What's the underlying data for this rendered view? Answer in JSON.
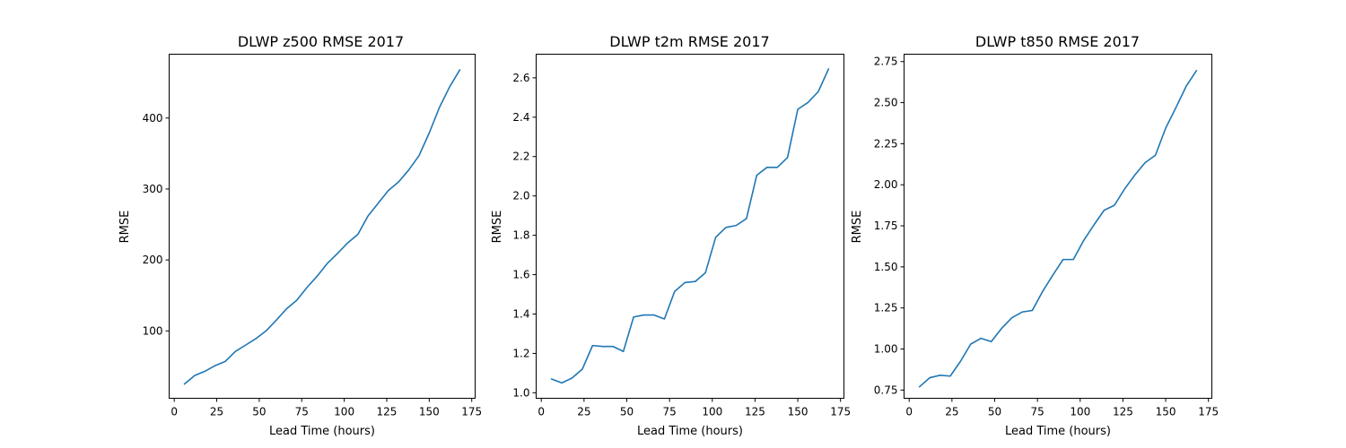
{
  "chart_data": [
    {
      "type": "line",
      "title": "DLWP z500 RMSE 2017",
      "xlabel": "Lead Time (hours)",
      "ylabel": "RMSE",
      "xlim": [
        -3,
        177
      ],
      "ylim": [
        5,
        490
      ],
      "xticks": [
        0,
        25,
        50,
        75,
        100,
        125,
        150,
        175
      ],
      "yticks": [
        100,
        200,
        300,
        400
      ],
      "ytick_labels": [
        "100",
        "200",
        "300",
        "400"
      ],
      "grid": false,
      "x": [
        6,
        12,
        18,
        24,
        30,
        36,
        42,
        48,
        54,
        60,
        66,
        72,
        78,
        84,
        90,
        96,
        102,
        108,
        114,
        120,
        126,
        132,
        138,
        144,
        150,
        156,
        162,
        168
      ],
      "series": [
        {
          "values": [
            25,
            37,
            43,
            51,
            57,
            71,
            80,
            89,
            100,
            115,
            131,
            143,
            161,
            177,
            195,
            209,
            224,
            236,
            262,
            280,
            298,
            310,
            327,
            347,
            379,
            415,
            444,
            468
          ]
        }
      ],
      "color": "#1f77b4"
    },
    {
      "type": "line",
      "title": "DLWP t2m RMSE 2017",
      "xlabel": "Lead Time (hours)",
      "ylabel": "RMSE",
      "xlim": [
        -3,
        177
      ],
      "ylim": [
        0.972,
        2.72
      ],
      "xticks": [
        0,
        25,
        50,
        75,
        100,
        125,
        150,
        175
      ],
      "yticks": [
        1.0,
        1.2,
        1.4,
        1.6,
        1.8,
        2.0,
        2.2,
        2.4,
        2.6
      ],
      "ytick_labels": [
        "1.0",
        "1.2",
        "1.4",
        "1.6",
        "1.8",
        "2.0",
        "2.2",
        "2.4",
        "2.6"
      ],
      "grid": false,
      "x": [
        6,
        12,
        18,
        24,
        30,
        36,
        42,
        48,
        54,
        60,
        66,
        72,
        78,
        84,
        90,
        96,
        102,
        108,
        114,
        120,
        126,
        132,
        138,
        144,
        150,
        156,
        162,
        168
      ],
      "series": [
        {
          "values": [
            1.07,
            1.05,
            1.075,
            1.12,
            1.24,
            1.235,
            1.235,
            1.21,
            1.385,
            1.395,
            1.395,
            1.375,
            1.515,
            1.56,
            1.565,
            1.61,
            1.79,
            1.84,
            1.85,
            1.885,
            2.105,
            2.145,
            2.145,
            2.195,
            2.44,
            2.475,
            2.53,
            2.645
          ]
        }
      ],
      "color": "#1f77b4"
    },
    {
      "type": "line",
      "title": "DLWP t850 RMSE 2017",
      "xlabel": "Lead Time (hours)",
      "ylabel": "RMSE",
      "xlim": [
        -3,
        177
      ],
      "ylim": [
        0.7,
        2.795
      ],
      "xticks": [
        0,
        25,
        50,
        75,
        100,
        125,
        150,
        175
      ],
      "yticks": [
        0.75,
        1.0,
        1.25,
        1.5,
        1.75,
        2.0,
        2.25,
        2.5,
        2.75
      ],
      "ytick_labels": [
        "0.75",
        "1.00",
        "1.25",
        "1.50",
        "1.75",
        "2.00",
        "2.25",
        "2.50",
        "2.75"
      ],
      "grid": false,
      "x": [
        6,
        12,
        18,
        24,
        30,
        36,
        42,
        48,
        54,
        60,
        66,
        72,
        78,
        84,
        90,
        96,
        102,
        108,
        114,
        120,
        126,
        132,
        138,
        144,
        150,
        156,
        162,
        168
      ],
      "series": [
        {
          "values": [
            0.77,
            0.825,
            0.84,
            0.835,
            0.925,
            1.03,
            1.065,
            1.045,
            1.125,
            1.19,
            1.225,
            1.235,
            1.35,
            1.45,
            1.545,
            1.545,
            1.66,
            1.755,
            1.845,
            1.875,
            1.975,
            2.06,
            2.135,
            2.18,
            2.345,
            2.47,
            2.6,
            2.695
          ]
        }
      ],
      "color": "#1f77b4"
    }
  ]
}
